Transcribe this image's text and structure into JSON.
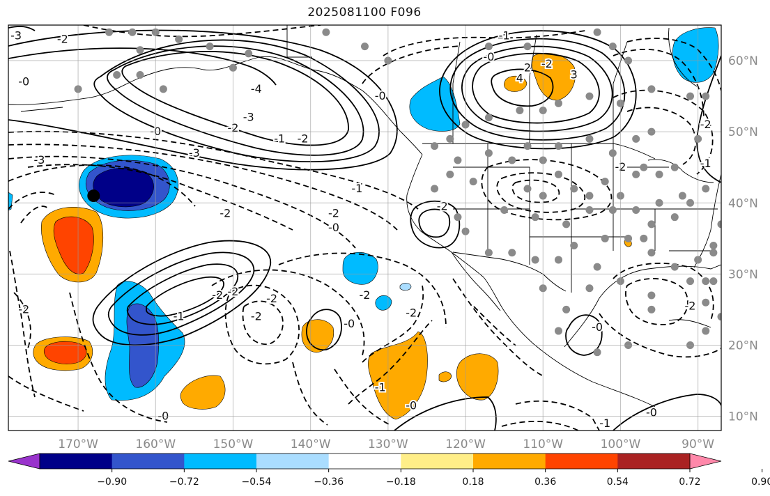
{
  "title": "2025081100 F096",
  "map": {
    "projection": "PlateCarree",
    "lon_range": [
      -179,
      -87
    ],
    "lat_range": [
      8,
      65
    ],
    "gridlines": true,
    "lon_ticks": [
      {
        "value": -170,
        "label": "170°W"
      },
      {
        "value": -160,
        "label": "160°W"
      },
      {
        "value": -150,
        "label": "150°W"
      },
      {
        "value": -140,
        "label": "140°W"
      },
      {
        "value": -130,
        "label": "130°W"
      },
      {
        "value": -120,
        "label": "120°W"
      },
      {
        "value": -110,
        "label": "110°W"
      },
      {
        "value": -100,
        "label": "100°W"
      },
      {
        "value": -90,
        "label": "90°W"
      }
    ],
    "lat_ticks": [
      {
        "value": 60,
        "label": "60°N"
      },
      {
        "value": 50,
        "label": "50°N"
      },
      {
        "value": 40,
        "label": "40°N"
      },
      {
        "value": 30,
        "label": "30°N"
      },
      {
        "value": 20,
        "label": "20°N"
      },
      {
        "value": 10,
        "label": "10°N"
      }
    ],
    "marker": {
      "lon": -168,
      "lat": 41,
      "color": "#000000"
    },
    "contour_labels": [
      {
        "text": "-3",
        "lon": -178,
        "lat": 63.5
      },
      {
        "text": "-2",
        "lon": -172,
        "lat": 63
      },
      {
        "text": "-0",
        "lon": -177,
        "lat": 57
      },
      {
        "text": "-4",
        "lon": -147,
        "lat": 56
      },
      {
        "text": "-3",
        "lon": -148,
        "lat": 52
      },
      {
        "text": "-2",
        "lon": -150,
        "lat": 50.5
      },
      {
        "text": "-0",
        "lon": -160,
        "lat": 50
      },
      {
        "text": "-1",
        "lon": -144,
        "lat": 49
      },
      {
        "text": "-2",
        "lon": -141,
        "lat": 49
      },
      {
        "text": "-3",
        "lon": -175,
        "lat": 46
      },
      {
        "text": "-3",
        "lon": -155,
        "lat": 47
      },
      {
        "text": "-1",
        "lon": -134,
        "lat": 42
      },
      {
        "text": "-2",
        "lon": -151,
        "lat": 38.5
      },
      {
        "text": "-2",
        "lon": -137,
        "lat": 38.5
      },
      {
        "text": "-0",
        "lon": -137,
        "lat": 36.5
      },
      {
        "text": "-0",
        "lon": -117,
        "lat": 60.5
      },
      {
        "text": "2",
        "lon": -112,
        "lat": 59
      },
      {
        "text": "4",
        "lon": -113,
        "lat": 57.5
      },
      {
        "text": "-2",
        "lon": -109.5,
        "lat": 59.5
      },
      {
        "text": "3",
        "lon": -106,
        "lat": 58
      },
      {
        "text": "-0",
        "lon": -131,
        "lat": 55
      },
      {
        "text": "-1",
        "lon": -115,
        "lat": 63.5
      },
      {
        "text": "-2",
        "lon": -100,
        "lat": 45
      },
      {
        "text": "-2",
        "lon": -123,
        "lat": 39.5
      },
      {
        "text": "-2",
        "lon": -152,
        "lat": 27
      },
      {
        "text": "-2",
        "lon": -150,
        "lat": 27.5
      },
      {
        "text": "-1",
        "lon": -157,
        "lat": 24
      },
      {
        "text": "-2",
        "lon": -145,
        "lat": 26.5
      },
      {
        "text": "-2",
        "lon": -147,
        "lat": 24
      },
      {
        "text": "-2",
        "lon": -133,
        "lat": 27
      },
      {
        "text": "-2",
        "lon": -127,
        "lat": 24.5
      },
      {
        "text": "-0",
        "lon": -135,
        "lat": 23
      },
      {
        "text": "-0",
        "lon": -127,
        "lat": 11.5
      },
      {
        "text": "-1",
        "lon": -131,
        "lat": 14
      },
      {
        "text": "-0",
        "lon": -159,
        "lat": 10
      },
      {
        "text": "-2",
        "lon": -177,
        "lat": 25
      },
      {
        "text": "-0",
        "lon": -103,
        "lat": 22.5
      },
      {
        "text": "-0",
        "lon": -96,
        "lat": 10.5
      },
      {
        "text": "-1",
        "lon": -102,
        "lat": 9
      },
      {
        "text": "-2",
        "lon": -91,
        "lat": 25.5
      },
      {
        "text": "-1",
        "lon": -89,
        "lat": 45.5
      },
      {
        "text": "-2",
        "lon": -89,
        "lat": 51
      }
    ],
    "station_points": [
      [
        -163,
        64
      ],
      [
        -162,
        61.5
      ],
      [
        -160,
        64
      ],
      [
        -157,
        63
      ],
      [
        -153,
        62
      ],
      [
        -148,
        61
      ],
      [
        -150,
        59
      ],
      [
        -165,
        58
      ],
      [
        -162,
        58
      ],
      [
        -170,
        56
      ],
      [
        -159,
        56
      ],
      [
        -138,
        64
      ],
      [
        -133,
        62
      ],
      [
        -130,
        60
      ],
      [
        -117,
        62
      ],
      [
        -112,
        62
      ],
      [
        -103,
        64
      ],
      [
        -99,
        60
      ],
      [
        -96,
        56
      ],
      [
        -100,
        54
      ],
      [
        -104,
        55
      ],
      [
        -108,
        54
      ],
      [
        -110,
        53
      ],
      [
        -113,
        53
      ],
      [
        -117,
        52
      ],
      [
        -120,
        51
      ],
      [
        -122,
        49
      ],
      [
        -124,
        48
      ],
      [
        -121,
        46
      ],
      [
        -122,
        44
      ],
      [
        -124,
        42
      ],
      [
        -119,
        43
      ],
      [
        -117,
        47
      ],
      [
        -114,
        46
      ],
      [
        -112,
        48
      ],
      [
        -108,
        48
      ],
      [
        -104,
        49
      ],
      [
        -101,
        47
      ],
      [
        -98,
        49
      ],
      [
        -96,
        50
      ],
      [
        -90,
        49
      ],
      [
        -93,
        45
      ],
      [
        -95,
        44
      ],
      [
        -98,
        44
      ],
      [
        -100,
        41
      ],
      [
        -104,
        41
      ],
      [
        -106,
        42
      ],
      [
        -110,
        41
      ],
      [
        -112,
        42
      ],
      [
        -115,
        39
      ],
      [
        -111,
        38
      ],
      [
        -107,
        37
      ],
      [
        -104,
        39
      ],
      [
        -101,
        39
      ],
      [
        -98,
        39
      ],
      [
        -96,
        37
      ],
      [
        -93,
        38
      ],
      [
        -91,
        40
      ],
      [
        -89,
        42
      ],
      [
        -92,
        41
      ],
      [
        -95,
        40
      ],
      [
        -97,
        35
      ],
      [
        -99,
        35
      ],
      [
        -102,
        35
      ],
      [
        -106,
        34
      ],
      [
        -108,
        32
      ],
      [
        -111,
        32
      ],
      [
        -114,
        33
      ],
      [
        -117,
        33
      ],
      [
        -120,
        36
      ],
      [
        -121,
        38
      ],
      [
        -96,
        33
      ],
      [
        -93,
        31
      ],
      [
        -90,
        32
      ],
      [
        -88,
        34
      ],
      [
        -89,
        29
      ],
      [
        -100,
        29
      ],
      [
        -103,
        31
      ],
      [
        -96,
        27
      ],
      [
        -96,
        25
      ],
      [
        -91,
        29
      ],
      [
        -89,
        26
      ],
      [
        -104,
        28
      ],
      [
        -110,
        28
      ],
      [
        -107,
        25
      ],
      [
        -108,
        22
      ],
      [
        -103,
        19
      ],
      [
        -99,
        20
      ],
      [
        -91,
        20
      ],
      [
        -89,
        22
      ],
      [
        -87,
        37
      ],
      [
        -87,
        24
      ],
      [
        -88,
        29
      ],
      [
        -88,
        33
      ],
      [
        -102,
        43
      ],
      [
        -108,
        44
      ],
      [
        -97,
        45
      ],
      [
        -110,
        46
      ],
      [
        -89,
        55
      ],
      [
        -91,
        55
      ],
      [
        -166,
        64
      ],
      [
        -101,
        62
      ]
    ]
  },
  "colorbar": {
    "ticks": [
      "−0.90",
      "−0.72",
      "−0.54",
      "−0.36",
      "−0.18",
      "0.18",
      "0.36",
      "0.54",
      "0.72",
      "0.90"
    ],
    "colors": [
      "#9933cc",
      "#000088",
      "#3355cc",
      "#00bbff",
      "#aaddff",
      "#ffffff",
      "#ffee88",
      "#ffaa00",
      "#ff4400",
      "#aa2222",
      "#ff88aa"
    ],
    "extend": "both"
  }
}
